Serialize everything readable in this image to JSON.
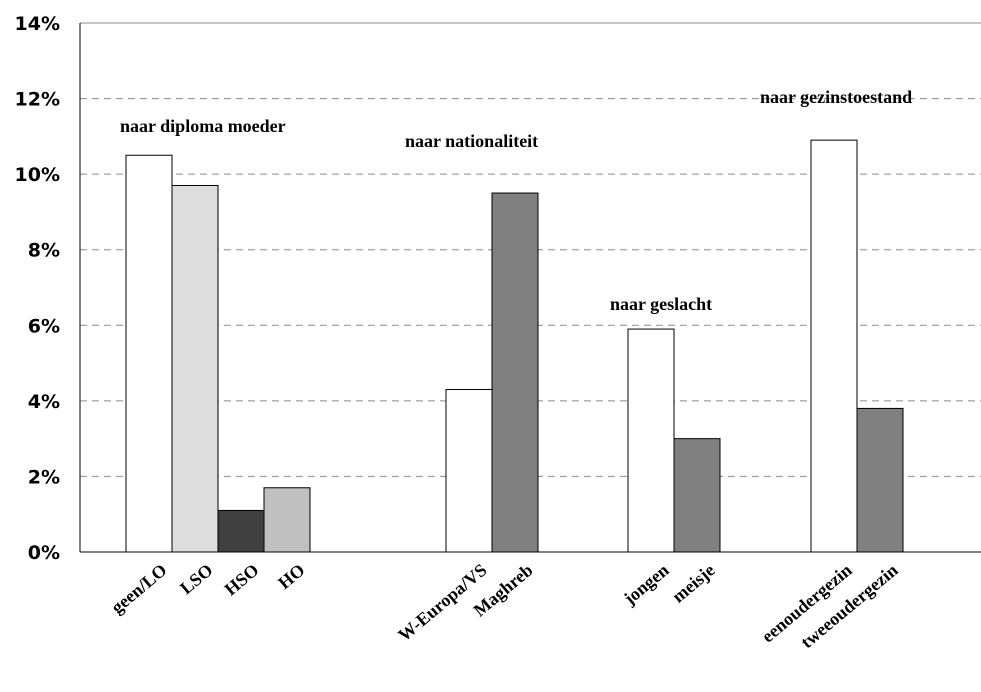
{
  "chart_data": {
    "type": "bar",
    "ylim": [
      0,
      14
    ],
    "ytick_labels": [
      "0%",
      "2%",
      "4%",
      "6%",
      "8%",
      "10%",
      "12%",
      "14%"
    ],
    "grid": true,
    "groups": [
      {
        "title": "naar diploma moeder",
        "bars": [
          {
            "label": "geen/LO",
            "value": 10.5,
            "color": "#ffffff"
          },
          {
            "label": "LSO",
            "value": 9.7,
            "color": "#dddddd"
          },
          {
            "label": "HSO",
            "value": 1.1,
            "color": "#404040"
          },
          {
            "label": "HO",
            "value": 1.7,
            "color": "#c0c0c0"
          }
        ]
      },
      {
        "title": "naar nationaliteit",
        "bars": [
          {
            "label": "W-Europa/VS",
            "value": 4.3,
            "color": "#ffffff"
          },
          {
            "label": "Maghreb",
            "value": 9.5,
            "color": "#808080"
          }
        ]
      },
      {
        "title": "naar geslacht",
        "bars": [
          {
            "label": "jongen",
            "value": 5.9,
            "color": "#ffffff"
          },
          {
            "label": "meisje",
            "value": 3.0,
            "color": "#808080"
          }
        ]
      },
      {
        "title": "naar gezinstoestand",
        "bars": [
          {
            "label": "eenoudergezin",
            "value": 10.9,
            "color": "#ffffff"
          },
          {
            "label": "tweeoudergezin",
            "value": 3.8,
            "color": "#808080"
          }
        ]
      }
    ]
  }
}
